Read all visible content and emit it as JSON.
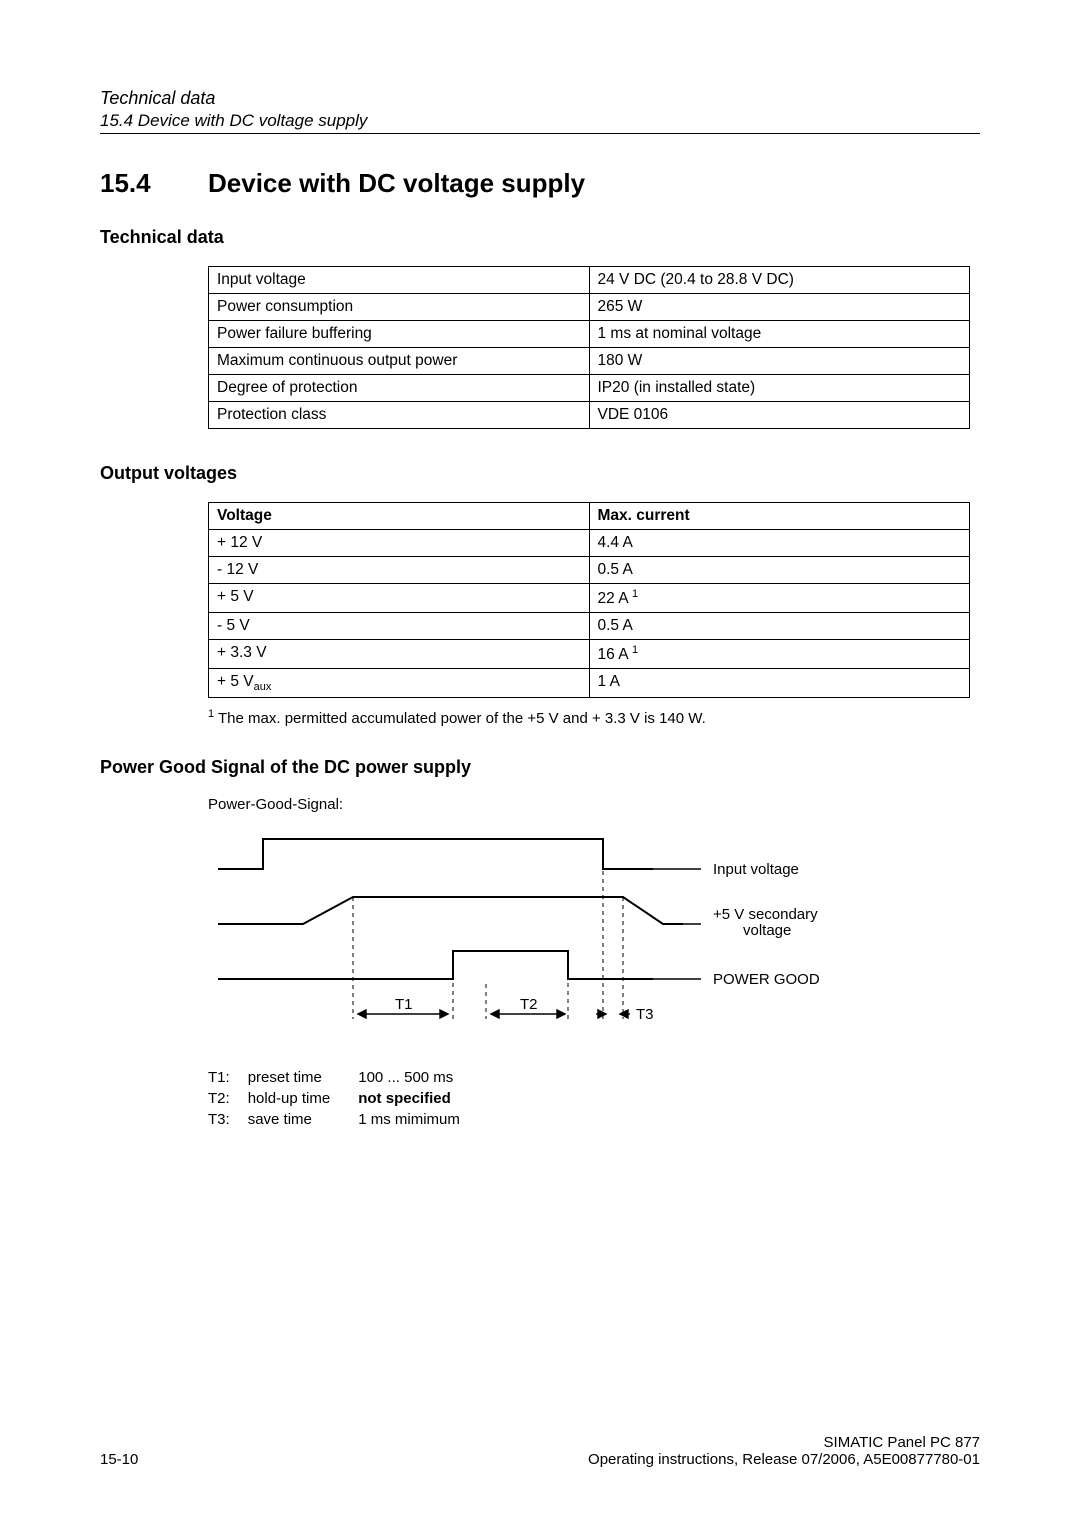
{
  "header": {
    "section_italic": "Technical data",
    "subsection_italic": "15.4 Device with DC voltage supply"
  },
  "section": {
    "number": "15.4",
    "title": "Device with DC voltage supply"
  },
  "tech_data": {
    "heading": "Technical data",
    "rows": [
      {
        "label": "Input voltage",
        "value": "24 V DC (20.4 to 28.8 V DC)"
      },
      {
        "label": "Power consumption",
        "value": "265 W"
      },
      {
        "label": "Power failure buffering",
        "value": "1 ms at nominal voltage"
      },
      {
        "label": "Maximum continuous output power",
        "value": "180 W"
      },
      {
        "label": "Degree of protection",
        "value": "IP20 (in installed state)"
      },
      {
        "label": "Protection class",
        "value": "VDE 0106"
      }
    ]
  },
  "output_voltages": {
    "heading": "Output voltages",
    "col1": "Voltage",
    "col2": "Max. current",
    "rows": [
      {
        "v": "+ 12 V",
        "c": "4.4 A"
      },
      {
        "v": "- 12 V",
        "c": "0.5 A"
      },
      {
        "v": "+ 5 V",
        "c_pre": "22 A ",
        "c_sup": "1"
      },
      {
        "v": "- 5 V",
        "c": "0.5 A"
      },
      {
        "v": "+ 3.3 V",
        "c_pre": "16 A ",
        "c_sup": "1"
      },
      {
        "v_pre": "+ 5 V",
        "v_sub": "aux",
        "c": "1 A"
      }
    ],
    "footnote_sup": "1",
    "footnote": " The max. permitted accumulated power of the +5 V and + 3.3 V is 140 W."
  },
  "power_good": {
    "heading": "Power Good Signal of the DC power supply",
    "caption": "Power-Good-Signal:",
    "labels": {
      "input_voltage": "Input voltage",
      "secondary": "+5 V secondary\nvoltage",
      "power_good": "POWER GOOD",
      "T1": "T1",
      "T2": "T2",
      "T3": "T3"
    },
    "legend": [
      {
        "k": "T1:",
        "n": "preset time",
        "v": "100 ... 500 ms",
        "bold": false
      },
      {
        "k": "T2:",
        "n": "hold-up time",
        "v": "not specified",
        "bold": true
      },
      {
        "k": "T3:",
        "n": "save time",
        "v": "1 ms mimimum",
        "bold": false
      }
    ]
  },
  "footer": {
    "page": "15-10",
    "right1": "SIMATIC Panel PC 877",
    "right2": "Operating instructions, Release 07/2006, A5E00877780-01"
  },
  "colors": {
    "line": "#000000",
    "dash": "#000000",
    "bg": "#ffffff"
  }
}
